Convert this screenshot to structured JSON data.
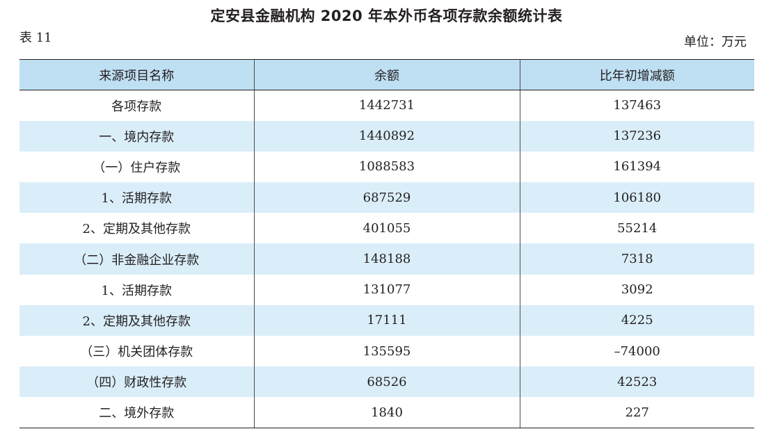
{
  "title": "定安县金融机构 2020 年本外币各项存款余额统计表",
  "table_label": "表 11",
  "unit_label": "单位：万元",
  "colors": {
    "header_bg": "#bfdff2",
    "stripe_bg": "#daeef9",
    "text": "#231f20"
  },
  "table": {
    "headers": [
      "来源项目名称",
      "余额",
      "比年初增减额"
    ],
    "rows": [
      {
        "name": "各项存款",
        "balance": "1442731",
        "change": "137463"
      },
      {
        "name": "一、境内存款",
        "balance": "1440892",
        "change": "137236"
      },
      {
        "name": "（一）住户存款",
        "balance": "1088583",
        "change": "161394"
      },
      {
        "name": "1、活期存款",
        "balance": "687529",
        "change": "106180"
      },
      {
        "name": "2、定期及其他存款",
        "balance": "401055",
        "change": "55214"
      },
      {
        "name": "（二）非金融企业存款",
        "balance": "148188",
        "change": "7318"
      },
      {
        "name": "1、活期存款",
        "balance": "131077",
        "change": "3092"
      },
      {
        "name": "2、定期及其他存款",
        "balance": "17111",
        "change": "4225"
      },
      {
        "name": "（三）机关团体存款",
        "balance": "135595",
        "change": "–74000"
      },
      {
        "name": "（四）财政性存款",
        "balance": "68526",
        "change": "42523"
      },
      {
        "name": "二、境外存款",
        "balance": "1840",
        "change": "227"
      }
    ]
  }
}
